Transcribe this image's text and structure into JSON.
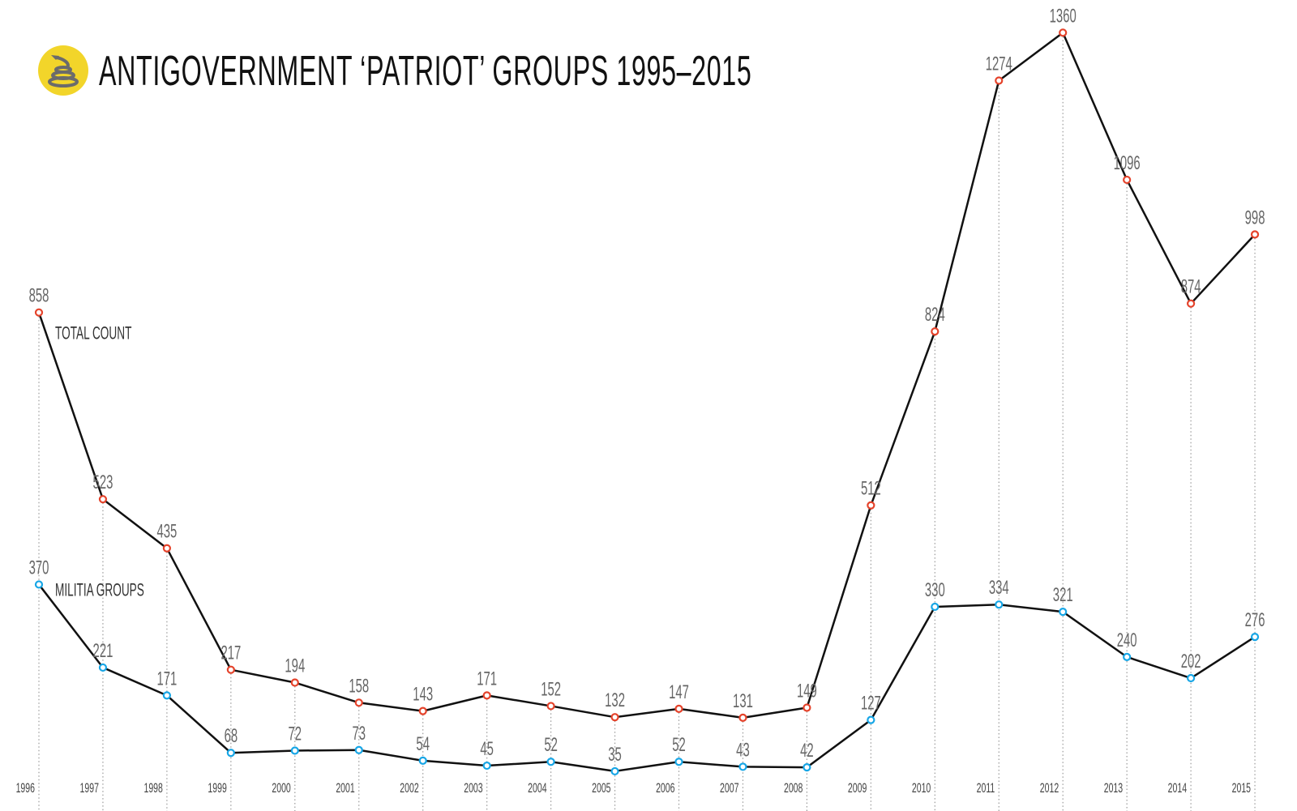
{
  "title": "ANTIGOVERNMENT ‘PATRIOT’ GROUPS 1995–2015",
  "logo_icon": "coiled-snake-icon",
  "colors": {
    "total_marker": "#e5432b",
    "militia_marker": "#17a6e6",
    "line": "#111111",
    "label": "#666666",
    "logo_bg": "#f2d52a",
    "logo_snake": "#6b6b6b"
  },
  "chart_data": {
    "type": "line",
    "title": "ANTIGOVERNMENT ‘PATRIOT’ GROUPS 1995–2015",
    "x": [
      "1996",
      "1997",
      "1998",
      "1999",
      "2000",
      "2001",
      "2002",
      "2003",
      "2004",
      "2005",
      "2006",
      "2007",
      "2008",
      "2009",
      "2010",
      "2011",
      "2012",
      "2013",
      "2014",
      "2015"
    ],
    "grid": "vertical dotted drop lines",
    "ylim": [
      0,
      1360
    ],
    "series": [
      {
        "name": "TOTAL COUNT",
        "color": "#e5432b",
        "values": [
          858,
          523,
          435,
          217,
          194,
          158,
          143,
          171,
          152,
          132,
          147,
          131,
          149,
          512,
          824,
          1274,
          1360,
          1096,
          874,
          998
        ]
      },
      {
        "name": "MILITIA GROUPS",
        "color": "#17a6e6",
        "values": [
          370,
          221,
          171,
          68,
          72,
          73,
          54,
          45,
          52,
          35,
          52,
          43,
          42,
          127,
          330,
          334,
          321,
          240,
          202,
          276
        ]
      }
    ]
  }
}
